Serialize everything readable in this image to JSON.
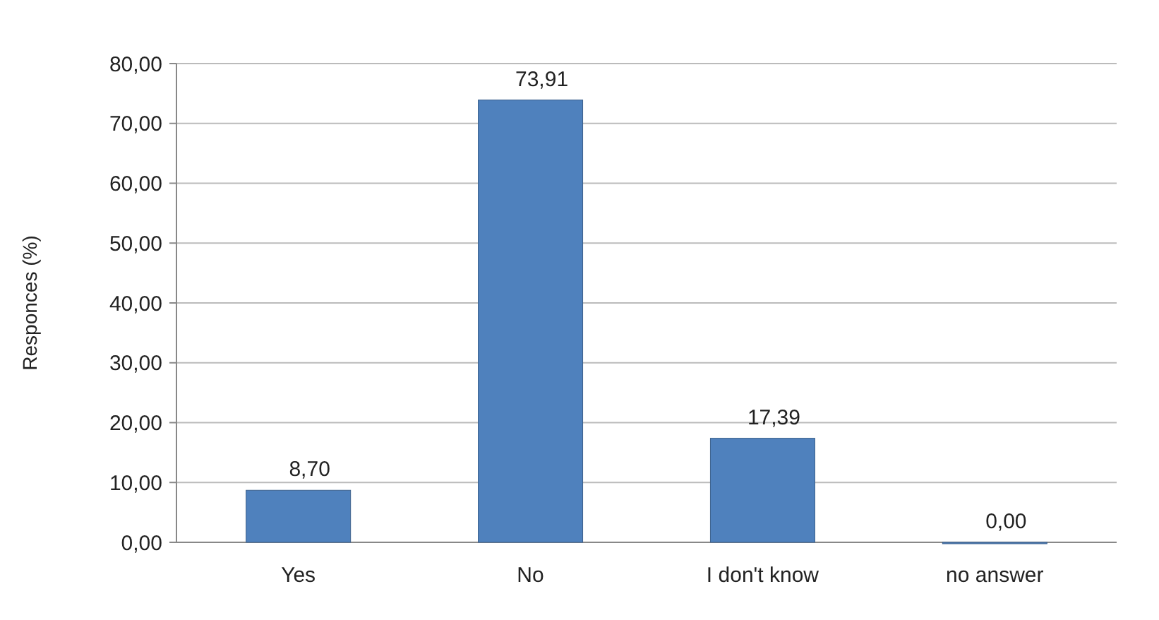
{
  "chart_data": {
    "type": "bar",
    "ylabel": "Responces (%)",
    "categories": [
      "Yes",
      "No",
      "I don't know",
      "no answer"
    ],
    "values": [
      8.7,
      73.91,
      17.39,
      0.0
    ],
    "value_labels": [
      "8,70",
      "73,91",
      "17,39",
      "0,00"
    ],
    "color": "#4f81bd",
    "ylim": [
      0,
      80
    ],
    "yticks": [
      {
        "value": 0,
        "label": "0,00"
      },
      {
        "value": 10,
        "label": "10,00"
      },
      {
        "value": 20,
        "label": "20,00"
      },
      {
        "value": 30,
        "label": "30,00"
      },
      {
        "value": 40,
        "label": "40,00"
      },
      {
        "value": 50,
        "label": "50,00"
      },
      {
        "value": 60,
        "label": "60,00"
      },
      {
        "value": 70,
        "label": "70,00"
      },
      {
        "value": 80,
        "label": "80,00"
      }
    ],
    "grid": "y"
  }
}
